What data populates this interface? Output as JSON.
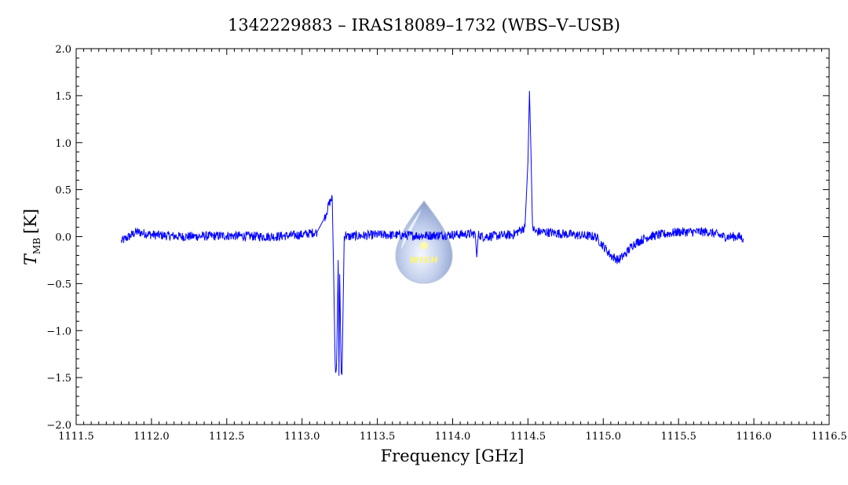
{
  "chart_data": {
    "type": "line",
    "title": "1342229883 – IRAS18089–1732 (WBS–V–USB)",
    "xlabel": "Frequency [GHz]",
    "ylabel": {
      "main": "T",
      "sub": "MB",
      "unit": "[K]"
    },
    "xlim": [
      1111.5,
      1116.5
    ],
    "ylim": [
      -2.0,
      2.0
    ],
    "x_ticks": [
      1111.5,
      1112.0,
      1112.5,
      1113.0,
      1113.5,
      1114.0,
      1114.5,
      1115.0,
      1115.5,
      1116.0,
      1116.5
    ],
    "x_tick_labels": [
      "1111.5",
      "1112.0",
      "1112.5",
      "1113.0",
      "1113.5",
      "1114.0",
      "1114.5",
      "1115.0",
      "1115.5",
      "1116.0",
      "1116.5"
    ],
    "y_ticks": [
      -2.0,
      -1.5,
      -1.0,
      -0.5,
      0.0,
      0.5,
      1.0,
      1.5,
      2.0
    ],
    "y_tick_labels": [
      "−2.0",
      "−1.5",
      "−1.0",
      "−0.5",
      "0.0",
      "0.5",
      "1.0",
      "1.5",
      "2.0"
    ],
    "grid": false,
    "series": [
      {
        "color": "#0000ff",
        "x": [
          1111.8,
          1111.9,
          1112.0,
          1112.2,
          1112.5,
          1112.8,
          1113.0,
          1113.1,
          1113.15,
          1113.18,
          1113.2,
          1113.21,
          1113.22,
          1113.225,
          1113.23,
          1113.24,
          1113.245,
          1113.25,
          1113.26,
          1113.265,
          1113.27,
          1113.28,
          1113.29,
          1113.3,
          1113.5,
          1113.8,
          1114.0,
          1114.15,
          1114.16,
          1114.17,
          1114.2,
          1114.4,
          1114.48,
          1114.5,
          1114.51,
          1114.52,
          1114.53,
          1114.55,
          1114.6,
          1114.8,
          1114.95,
          1115.0,
          1115.05,
          1115.1,
          1115.15,
          1115.2,
          1115.3,
          1115.5,
          1115.7,
          1115.8,
          1115.9,
          1115.93
        ],
        "y": [
          -0.05,
          0.05,
          0.02,
          0.0,
          0.01,
          0.0,
          0.02,
          0.05,
          0.2,
          0.35,
          0.42,
          -0.4,
          -1.4,
          -1.45,
          -1.3,
          -0.25,
          -1.48,
          -0.4,
          -1.45,
          -1.47,
          -1.0,
          0.0,
          0.02,
          0.0,
          0.02,
          0.01,
          0.02,
          0.03,
          -0.22,
          0.02,
          0.0,
          0.02,
          0.1,
          0.8,
          1.55,
          0.9,
          0.1,
          0.05,
          0.05,
          0.02,
          0.0,
          -0.1,
          -0.2,
          -0.25,
          -0.18,
          -0.08,
          0.0,
          0.05,
          0.05,
          0.0,
          0.0,
          -0.02
        ]
      }
    ],
    "logo": "WISH"
  }
}
